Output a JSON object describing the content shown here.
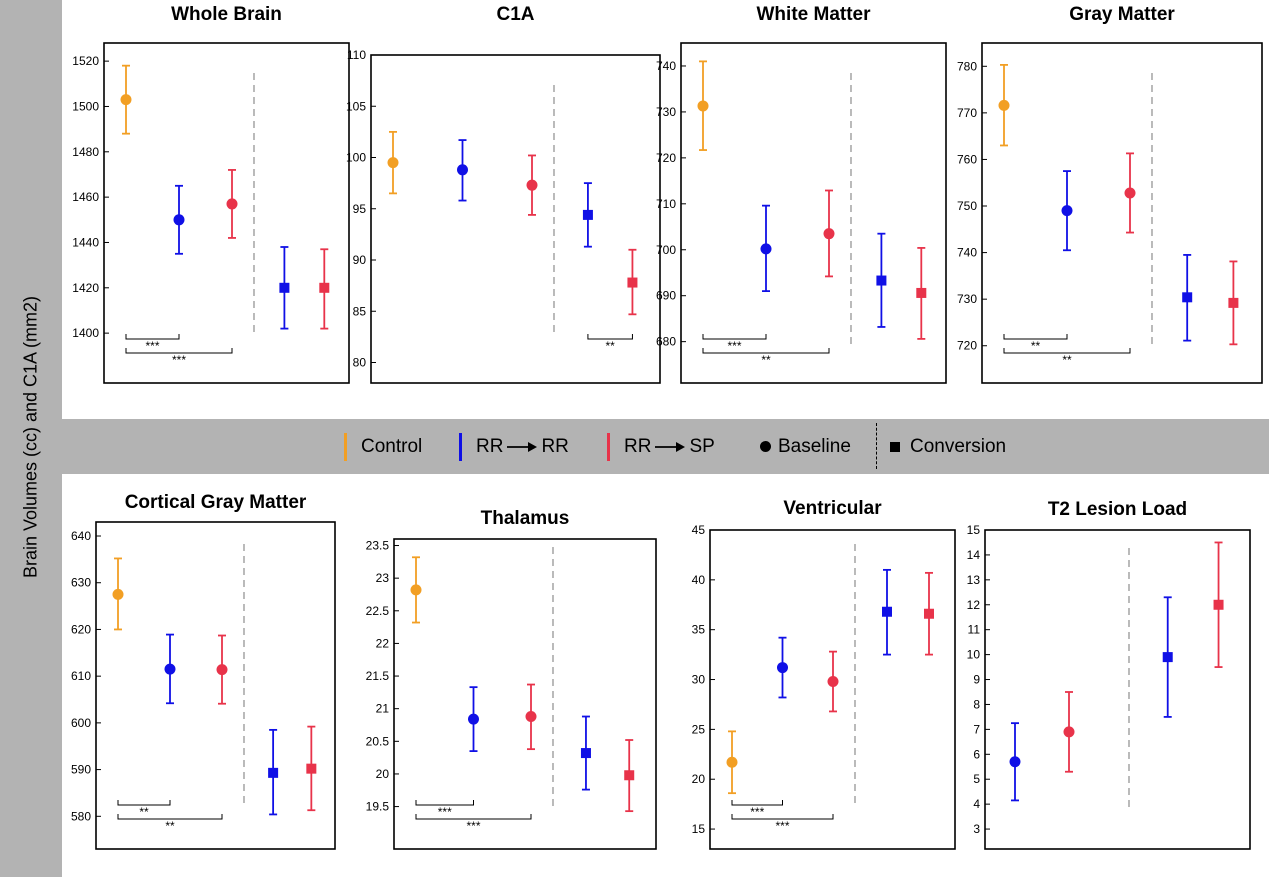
{
  "figure": {
    "ylabel": "Brain Volumes (cc) and C1A (mm2)",
    "colors": {
      "control": "#f29f24",
      "rr_rr": "#1010e6",
      "rr_sp": "#e8334a",
      "axis": "#000000",
      "divider": "#aaaaaa"
    }
  },
  "legend": {
    "control": "Control",
    "rr_rr": [
      "RR",
      "RR"
    ],
    "rr_sp": [
      "RR",
      "SP"
    ],
    "baseline": "Baseline",
    "conversion": "Conversion",
    "marker_icons": [
      "circle-icon",
      "square-icon"
    ],
    "arrow_icon": "arrow-right-icon"
  },
  "chart_data": [
    {
      "type": "errorbar",
      "title": "Whole Brain",
      "ylim": [
        1378,
        1528
      ],
      "yticks": [
        1400,
        1420,
        1440,
        1460,
        1480,
        1500,
        1520
      ],
      "points": [
        {
          "group": "Control",
          "time": "Baseline",
          "x": 0,
          "y": 1503,
          "lo": 1488,
          "hi": 1518
        },
        {
          "group": "RR→RR",
          "time": "Baseline",
          "x": 1,
          "y": 1450,
          "lo": 1435,
          "hi": 1465
        },
        {
          "group": "RR→SP",
          "time": "Baseline",
          "x": 2,
          "y": 1457,
          "lo": 1442,
          "hi": 1472
        },
        {
          "group": "RR→RR",
          "time": "Conversion",
          "x": 3,
          "y": 1420,
          "lo": 1402,
          "hi": 1438
        },
        {
          "group": "RR→SP",
          "time": "Conversion",
          "x": 4,
          "y": 1420,
          "lo": 1402,
          "hi": 1437
        }
      ],
      "significance": [
        {
          "from": 0,
          "to": 1,
          "label": "***"
        },
        {
          "from": 0,
          "to": 2,
          "label": "***"
        }
      ]
    },
    {
      "type": "errorbar",
      "title": "C1A",
      "ylim": [
        78,
        110
      ],
      "yticks": [
        80,
        85,
        90,
        95,
        100,
        105,
        110
      ],
      "points": [
        {
          "group": "Control",
          "time": "Baseline",
          "x": 0,
          "y": 99.5,
          "lo": 96.5,
          "hi": 102.5
        },
        {
          "group": "RR→RR",
          "time": "Baseline",
          "x": 1,
          "y": 98.8,
          "lo": 95.8,
          "hi": 101.7
        },
        {
          "group": "RR→SP",
          "time": "Baseline",
          "x": 2,
          "y": 97.3,
          "lo": 94.4,
          "hi": 100.2
        },
        {
          "group": "RR→RR",
          "time": "Conversion",
          "x": 3,
          "y": 94.4,
          "lo": 91.3,
          "hi": 97.5
        },
        {
          "group": "RR→SP",
          "time": "Conversion",
          "x": 4,
          "y": 87.8,
          "lo": 84.7,
          "hi": 91
        }
      ],
      "significance": [
        {
          "from": 3,
          "to": 4,
          "label": "**"
        }
      ]
    },
    {
      "type": "errorbar",
      "title": "White Matter",
      "ylim": [
        671,
        745
      ],
      "yticks": [
        680,
        690,
        700,
        710,
        720,
        730,
        740
      ],
      "points": [
        {
          "group": "Control",
          "time": "Baseline",
          "x": 0,
          "y": 731.3,
          "lo": 721.7,
          "hi": 741
        },
        {
          "group": "RR→RR",
          "time": "Baseline",
          "x": 1,
          "y": 700.2,
          "lo": 691,
          "hi": 709.6
        },
        {
          "group": "RR→SP",
          "time": "Baseline",
          "x": 2,
          "y": 703.5,
          "lo": 694.2,
          "hi": 712.9
        },
        {
          "group": "RR→RR",
          "time": "Conversion",
          "x": 3,
          "y": 693.3,
          "lo": 683.2,
          "hi": 703.5
        },
        {
          "group": "RR→SP",
          "time": "Conversion",
          "x": 4,
          "y": 690.6,
          "lo": 680.6,
          "hi": 700.4
        }
      ],
      "significance": [
        {
          "from": 0,
          "to": 1,
          "label": "***"
        },
        {
          "from": 0,
          "to": 2,
          "label": "**"
        }
      ]
    },
    {
      "type": "errorbar",
      "title": "Gray Matter",
      "ylim": [
        712,
        785
      ],
      "yticks": [
        720,
        730,
        740,
        750,
        760,
        770,
        780
      ],
      "points": [
        {
          "group": "Control",
          "time": "Baseline",
          "x": 0,
          "y": 771.6,
          "lo": 763,
          "hi": 780.3
        },
        {
          "group": "RR→RR",
          "time": "Baseline",
          "x": 1,
          "y": 749,
          "lo": 740.5,
          "hi": 757.5
        },
        {
          "group": "RR→SP",
          "time": "Baseline",
          "x": 2,
          "y": 752.8,
          "lo": 744.3,
          "hi": 761.3
        },
        {
          "group": "RR→RR",
          "time": "Conversion",
          "x": 3,
          "y": 730.4,
          "lo": 721.1,
          "hi": 739.5
        },
        {
          "group": "RR→SP",
          "time": "Conversion",
          "x": 4,
          "y": 729.2,
          "lo": 720.3,
          "hi": 738.1
        }
      ],
      "significance": [
        {
          "from": 0,
          "to": 1,
          "label": "**"
        },
        {
          "from": 0,
          "to": 2,
          "label": "**"
        }
      ]
    },
    {
      "type": "errorbar",
      "title": "Cortical Gray Matter",
      "ylim": [
        573,
        643
      ],
      "yticks": [
        580,
        590,
        600,
        610,
        620,
        630,
        640
      ],
      "points": [
        {
          "group": "Control",
          "time": "Baseline",
          "x": 0,
          "y": 627.5,
          "lo": 620,
          "hi": 635.2
        },
        {
          "group": "RR→RR",
          "time": "Baseline",
          "x": 1,
          "y": 611.5,
          "lo": 604.2,
          "hi": 618.9
        },
        {
          "group": "RR→SP",
          "time": "Baseline",
          "x": 2,
          "y": 611.4,
          "lo": 604.1,
          "hi": 618.7
        },
        {
          "group": "RR→RR",
          "time": "Conversion",
          "x": 3,
          "y": 589.3,
          "lo": 580.4,
          "hi": 598.5
        },
        {
          "group": "RR→SP",
          "time": "Conversion",
          "x": 4,
          "y": 590.2,
          "lo": 581.3,
          "hi": 599.2
        }
      ],
      "significance": [
        {
          "from": 0,
          "to": 1,
          "label": "**"
        },
        {
          "from": 0,
          "to": 2,
          "label": "**"
        }
      ]
    },
    {
      "type": "errorbar",
      "title": "Thalamus",
      "ylim": [
        18.85,
        23.6
      ],
      "yticks": [
        19.5,
        20.0,
        20.5,
        21.0,
        21.5,
        22.0,
        22.5,
        23.0,
        23.5
      ],
      "points": [
        {
          "group": "Control",
          "time": "Baseline",
          "x": 0,
          "y": 22.82,
          "lo": 22.32,
          "hi": 23.32
        },
        {
          "group": "RR→RR",
          "time": "Baseline",
          "x": 1,
          "y": 20.84,
          "lo": 20.35,
          "hi": 21.33
        },
        {
          "group": "RR→SP",
          "time": "Baseline",
          "x": 2,
          "y": 20.88,
          "lo": 20.38,
          "hi": 21.37
        },
        {
          "group": "RR→RR",
          "time": "Conversion",
          "x": 3,
          "y": 20.32,
          "lo": 19.76,
          "hi": 20.88
        },
        {
          "group": "RR→SP",
          "time": "Conversion",
          "x": 4,
          "y": 19.98,
          "lo": 19.43,
          "hi": 20.52
        }
      ],
      "significance": [
        {
          "from": 0,
          "to": 1,
          "label": "***"
        },
        {
          "from": 0,
          "to": 2,
          "label": "***"
        }
      ]
    },
    {
      "type": "errorbar",
      "title": "Ventricular",
      "ylim": [
        13,
        45
      ],
      "yticks": [
        15,
        20,
        25,
        30,
        35,
        40,
        45
      ],
      "points": [
        {
          "group": "Control",
          "time": "Baseline",
          "x": 0,
          "y": 21.7,
          "lo": 18.6,
          "hi": 24.8
        },
        {
          "group": "RR→RR",
          "time": "Baseline",
          "x": 1,
          "y": 31.2,
          "lo": 28.2,
          "hi": 34.2
        },
        {
          "group": "RR→SP",
          "time": "Baseline",
          "x": 2,
          "y": 29.8,
          "lo": 26.8,
          "hi": 32.8
        },
        {
          "group": "RR→RR",
          "time": "Conversion",
          "x": 3,
          "y": 36.8,
          "lo": 32.5,
          "hi": 41
        },
        {
          "group": "RR→SP",
          "time": "Conversion",
          "x": 4,
          "y": 36.6,
          "lo": 32.5,
          "hi": 40.7
        }
      ],
      "significance": [
        {
          "from": 0,
          "to": 1,
          "label": "***"
        },
        {
          "from": 0,
          "to": 2,
          "label": "***"
        }
      ]
    },
    {
      "type": "errorbar",
      "title": "T2 Lesion Load",
      "ylim": [
        2.2,
        15
      ],
      "yticks": [
        3,
        4,
        5,
        6,
        7,
        8,
        9,
        10,
        11,
        12,
        13,
        14,
        15
      ],
      "points": [
        {
          "group": "RR→RR",
          "time": "Baseline",
          "x": 1,
          "y": 5.7,
          "lo": 4.15,
          "hi": 7.25
        },
        {
          "group": "RR→SP",
          "time": "Baseline",
          "x": 2,
          "y": 6.9,
          "lo": 5.3,
          "hi": 8.5
        },
        {
          "group": "RR→RR",
          "time": "Conversion",
          "x": 3,
          "y": 9.9,
          "lo": 7.5,
          "hi": 12.3
        },
        {
          "group": "RR→SP",
          "time": "Conversion",
          "x": 4,
          "y": 12,
          "lo": 9.5,
          "hi": 14.5
        }
      ],
      "significance": []
    }
  ]
}
